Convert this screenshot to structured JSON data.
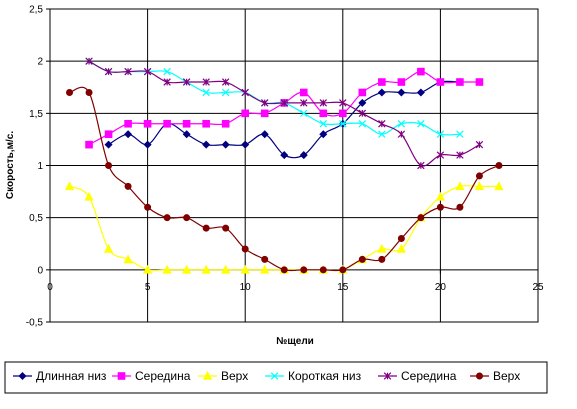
{
  "chart_data": {
    "type": "line",
    "title": "",
    "xlabel": "№щели",
    "ylabel": "Скорость,м/с.",
    "xlim": [
      0,
      25
    ],
    "ylim": [
      -0.5,
      2.5
    ],
    "x_ticks": [
      "0",
      "5",
      "10",
      "15",
      "20",
      "25"
    ],
    "y_ticks": [
      "-0,5",
      "0",
      "0,5",
      "1",
      "1,5",
      "2",
      "2,5"
    ],
    "grid": "vertical",
    "legend_position": "bottom",
    "series": [
      {
        "name": "Длинная низ",
        "color": "#000080",
        "marker": "diamond",
        "x": [
          3,
          4,
          5,
          6,
          7,
          8,
          9,
          10,
          11,
          12,
          13,
          14,
          15,
          16,
          17,
          18,
          19,
          20,
          21
        ],
        "y": [
          1.2,
          1.3,
          1.2,
          1.4,
          1.3,
          1.2,
          1.2,
          1.2,
          1.3,
          1.1,
          1.1,
          1.3,
          1.4,
          1.6,
          1.7,
          1.7,
          1.7,
          1.8,
          1.8
        ]
      },
      {
        "name": "Середина",
        "color": "#ff00ff",
        "marker": "square",
        "x": [
          2,
          3,
          4,
          5,
          6,
          7,
          8,
          9,
          10,
          11,
          12,
          13,
          14,
          15,
          16,
          17,
          18,
          19,
          20,
          21,
          22
        ],
        "y": [
          1.2,
          1.3,
          1.4,
          1.4,
          1.4,
          1.4,
          1.4,
          1.4,
          1.5,
          1.5,
          1.6,
          1.7,
          1.5,
          1.5,
          1.7,
          1.8,
          1.8,
          1.9,
          1.8,
          1.8,
          1.8
        ]
      },
      {
        "name": "Верх",
        "color": "#ffff00",
        "marker": "triangle",
        "x": [
          1,
          2,
          3,
          4,
          5,
          6,
          7,
          8,
          9,
          10,
          11,
          12,
          13,
          14,
          15,
          16,
          17,
          18,
          19,
          20,
          21,
          22,
          23
        ],
        "y": [
          0.8,
          0.7,
          0.2,
          0.1,
          0,
          0,
          0,
          0,
          0,
          0,
          0,
          0,
          0,
          0,
          0,
          0.1,
          0.2,
          0.2,
          0.5,
          0.7,
          0.8,
          0.8,
          0.8
        ]
      },
      {
        "name": "Короткая низ",
        "color": "#00ffff",
        "marker": "x",
        "x": [
          2,
          3,
          4,
          5,
          6,
          7,
          8,
          9,
          10,
          11,
          12,
          13,
          14,
          15,
          16,
          17,
          18,
          19,
          20,
          21
        ],
        "y": [
          2.0,
          1.9,
          1.9,
          1.9,
          1.9,
          1.8,
          1.7,
          1.7,
          1.7,
          1.6,
          1.6,
          1.5,
          1.4,
          1.4,
          1.4,
          1.3,
          1.4,
          1.4,
          1.3,
          1.3
        ]
      },
      {
        "name": "Середина",
        "color": "#800080",
        "marker": "star",
        "x": [
          2,
          3,
          4,
          5,
          6,
          7,
          8,
          9,
          10,
          11,
          12,
          13,
          14,
          15,
          16,
          17,
          18,
          19,
          20,
          21,
          22
        ],
        "y": [
          2.0,
          1.9,
          1.9,
          1.9,
          1.8,
          1.8,
          1.8,
          1.8,
          1.7,
          1.6,
          1.6,
          1.6,
          1.6,
          1.6,
          1.5,
          1.4,
          1.3,
          1.0,
          1.1,
          1.1,
          1.2
        ]
      },
      {
        "name": "Верх",
        "color": "#800000",
        "marker": "circle",
        "x": [
          1,
          2,
          3,
          4,
          5,
          6,
          7,
          8,
          9,
          10,
          11,
          12,
          13,
          14,
          15,
          16,
          17,
          18,
          19,
          20,
          21,
          22,
          23
        ],
        "y": [
          1.7,
          1.7,
          1.0,
          0.8,
          0.6,
          0.5,
          0.5,
          0.4,
          0.4,
          0.2,
          0.1,
          0,
          0,
          0,
          0,
          0.1,
          0.1,
          0.3,
          0.5,
          0.6,
          0.6,
          0.9,
          1.0
        ]
      }
    ]
  }
}
